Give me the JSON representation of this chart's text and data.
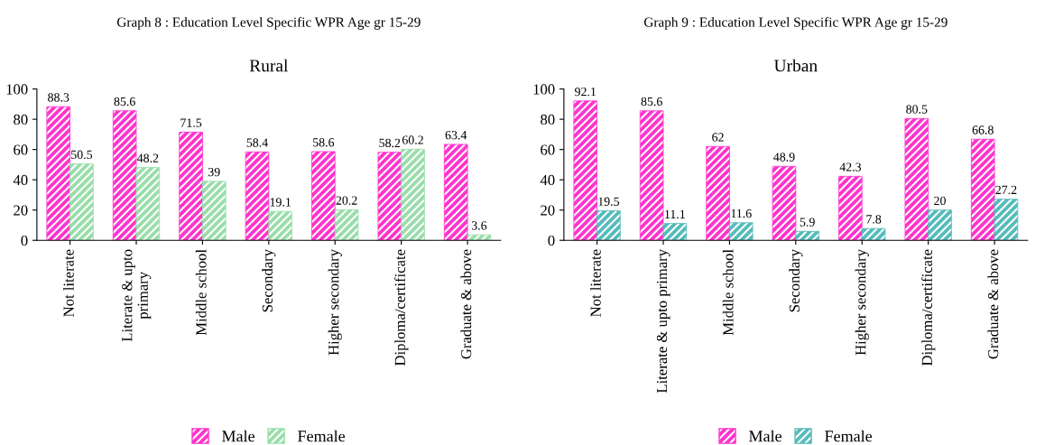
{
  "chart_data": [
    {
      "type": "bar",
      "title": "Graph 8 : Education Level Specific WPR Age gr 15-29",
      "subtitle": "Rural",
      "categories": [
        "Not literate",
        "Literate & upto\nprimary",
        "Middle school",
        "Secondary",
        "Higher secondary",
        "Diploma/certificate",
        "Graduate & above"
      ],
      "series": [
        {
          "name": "Male",
          "color": "#ff33cc",
          "values": [
            88.3,
            85.6,
            71.5,
            58.4,
            58.6,
            58.2,
            63.4
          ]
        },
        {
          "name": "Female",
          "color": "#99ddaa",
          "values": [
            50.5,
            48.2,
            39,
            19.1,
            20.2,
            60.2,
            3.6
          ]
        }
      ],
      "ylim": [
        0,
        100
      ],
      "yticks": [
        0,
        20,
        40,
        60,
        80,
        100
      ],
      "data_labels": true,
      "legend": "bottom",
      "grid": false
    },
    {
      "type": "bar",
      "title": "Graph 9 : Education Level Specific WPR Age gr 15-29",
      "subtitle": "Urban",
      "categories": [
        "Not literate",
        "Literate & upto primary",
        "Middle school",
        "Secondary",
        "Higher secondary",
        "Diploma/certificate",
        "Graduate & above"
      ],
      "series": [
        {
          "name": "Male",
          "color": "#ff33cc",
          "values": [
            92.1,
            85.6,
            62,
            48.9,
            42.3,
            80.5,
            66.8
          ]
        },
        {
          "name": "Female",
          "color": "#55bbbb",
          "values": [
            19.5,
            11.1,
            11.6,
            5.9,
            7.8,
            20,
            27.2
          ]
        }
      ],
      "ylim": [
        0,
        100
      ],
      "yticks": [
        0,
        20,
        40,
        60,
        80,
        100
      ],
      "data_labels": true,
      "legend": "bottom",
      "grid": false
    }
  ]
}
